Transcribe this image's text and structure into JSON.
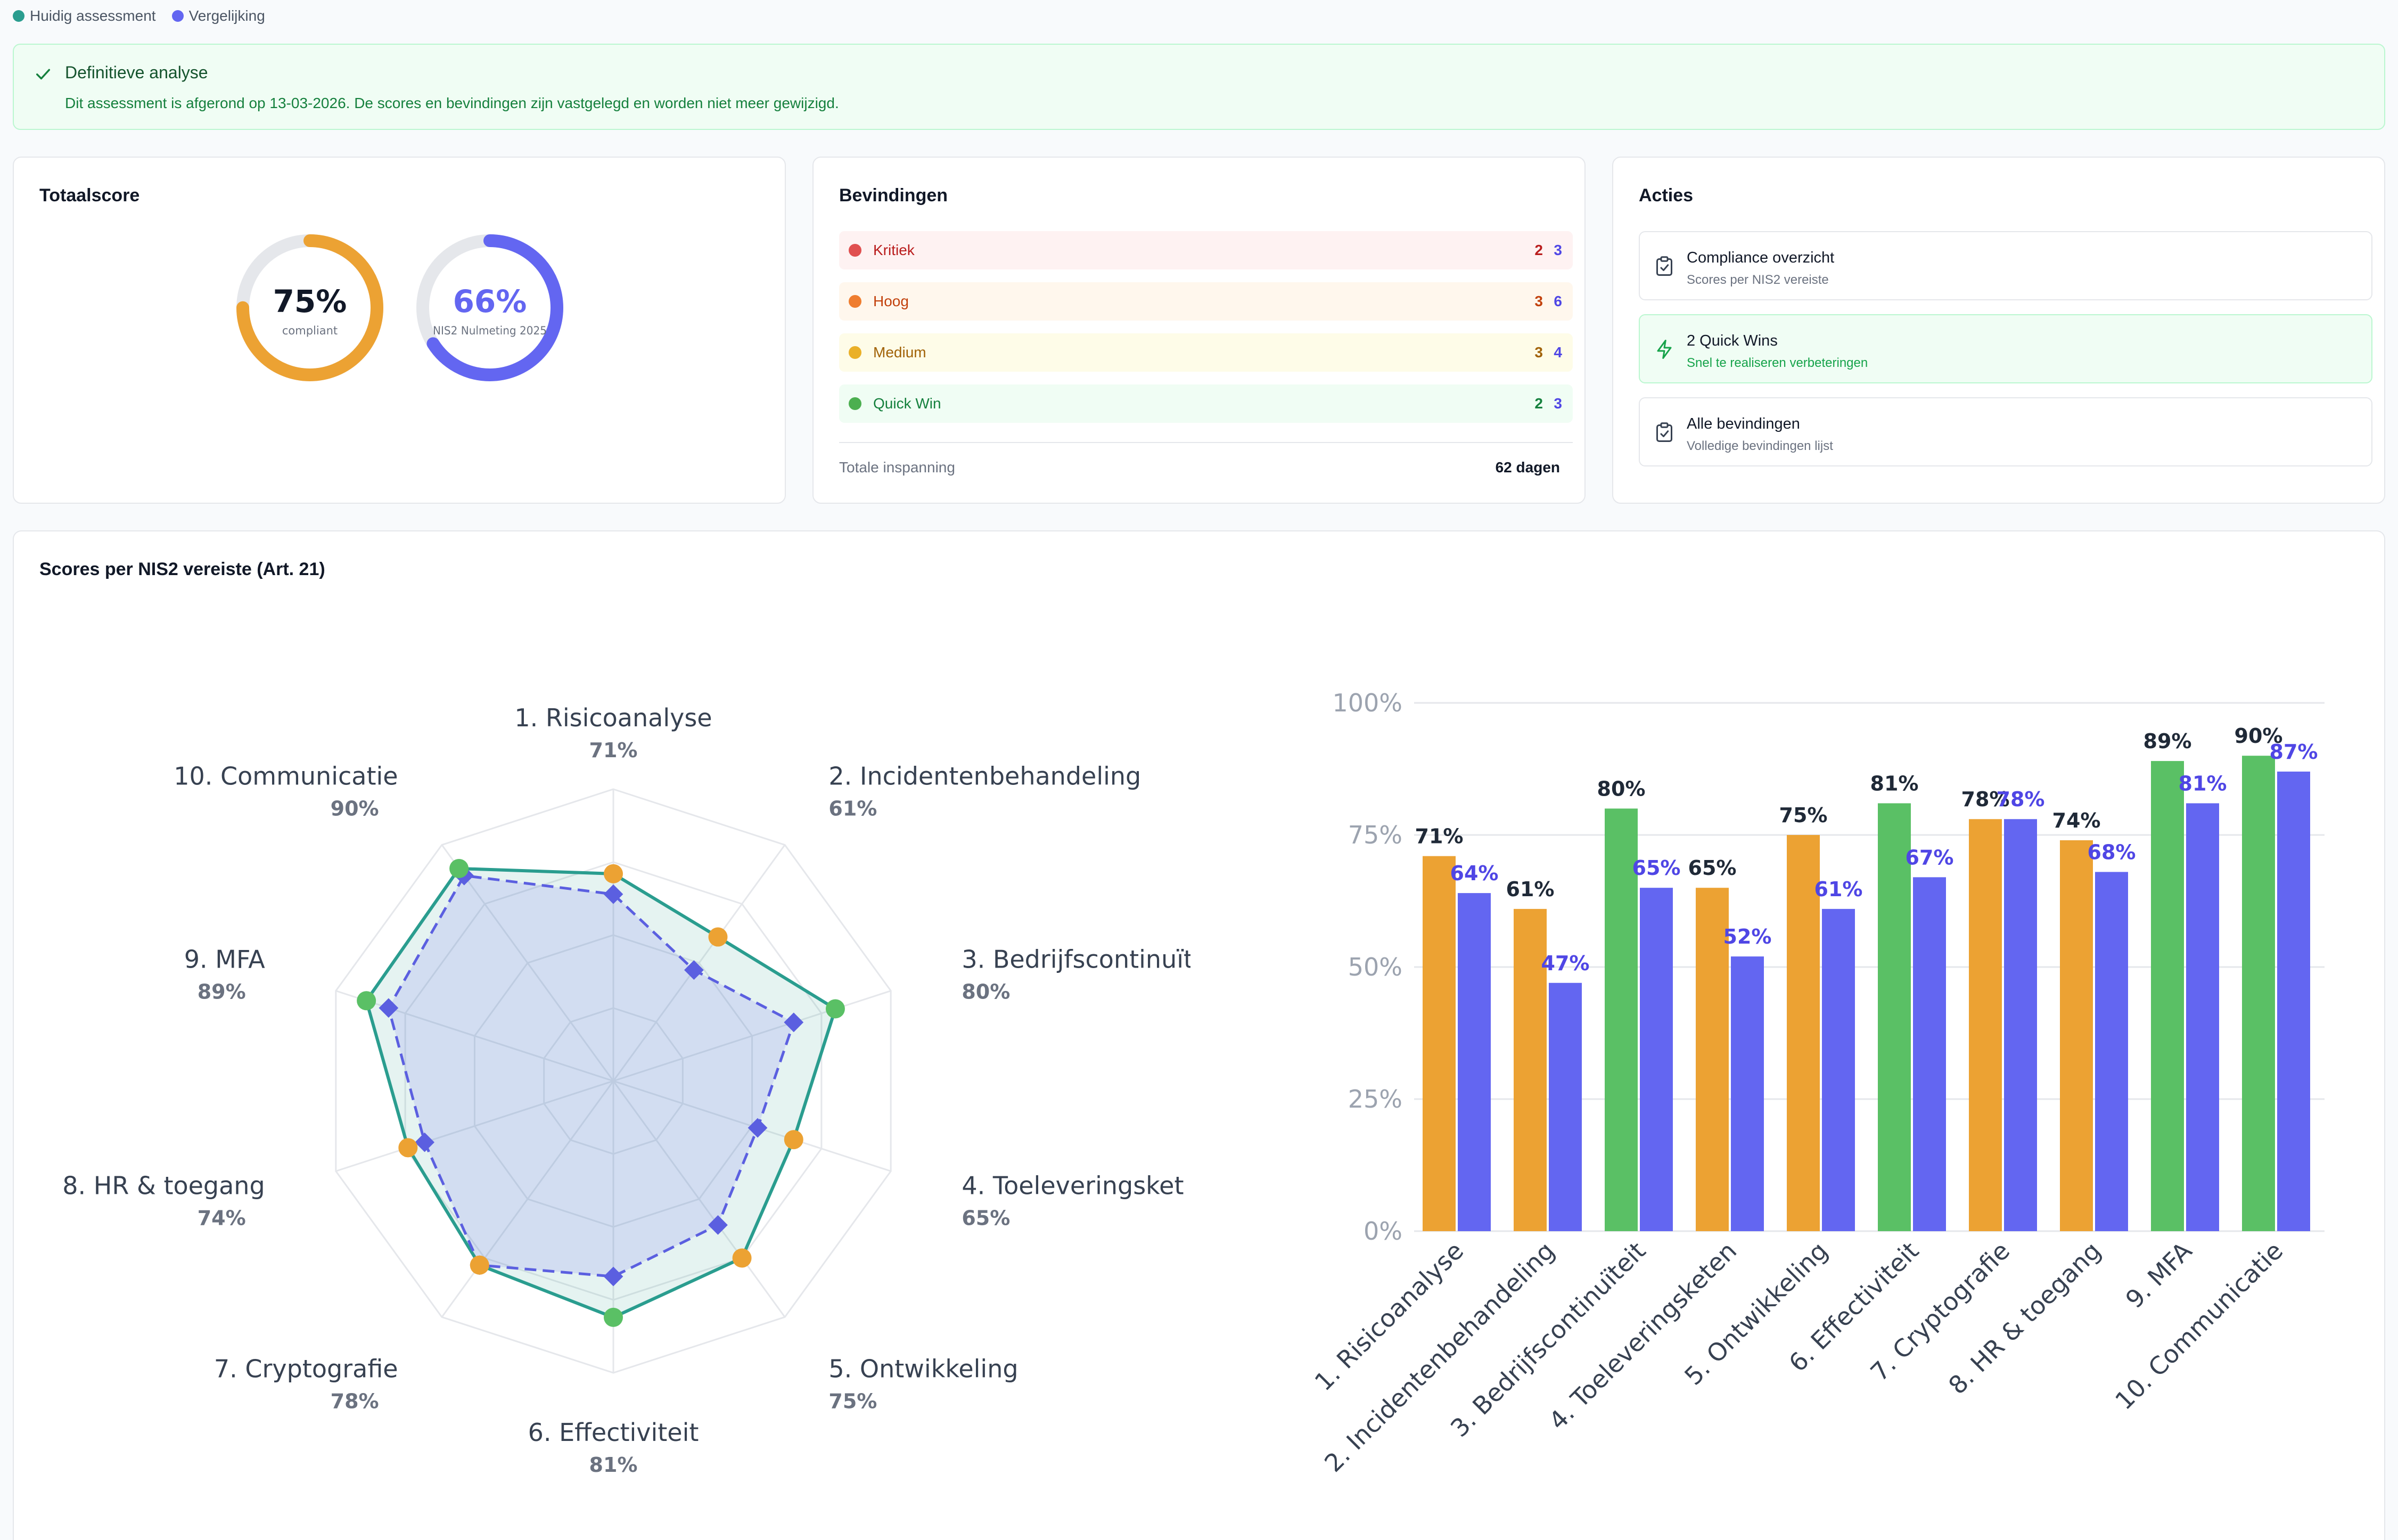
{
  "legend": {
    "current": {
      "label": "Huidig assessment",
      "color": "#2a9d8f"
    },
    "comparison": {
      "label": "Vergelijking",
      "color": "#6366f1"
    }
  },
  "banner": {
    "title": "Definitieve analyse",
    "text": "Dit assessment is afgerond op 13-03-2026. De scores en bevindingen zijn vastgelegd en worden niet meer gewijzigd."
  },
  "total_score": {
    "title": "Totaalscore",
    "current": {
      "value": "75%",
      "label": "compliant",
      "fraction": 0.75,
      "color": "#eca233"
    },
    "comparison": {
      "value": "66%",
      "label": "NIS2 Nulmeting 2025",
      "fraction": 0.66,
      "color": "#6366f1"
    }
  },
  "findings": {
    "title": "Bevindingen",
    "rows": [
      {
        "label": "Kritiek",
        "current": "2",
        "comparison": "3",
        "dot": "#e04f4f",
        "bg": "#fef2f2",
        "text": "#b91c1c"
      },
      {
        "label": "Hoog",
        "current": "3",
        "comparison": "6",
        "dot": "#ef7d2f",
        "bg": "#fff7ed",
        "text": "#c2410c"
      },
      {
        "label": "Medium",
        "current": "3",
        "comparison": "4",
        "dot": "#eab028",
        "bg": "#fefce8",
        "text": "#a16207"
      },
      {
        "label": "Quick Win",
        "current": "2",
        "comparison": "3",
        "dot": "#4caf50",
        "bg": "#f0fdf4",
        "text": "#15803d"
      }
    ],
    "effort_label": "Totale inspanning",
    "effort_value": "62 dagen"
  },
  "actions": {
    "title": "Acties",
    "items": [
      {
        "title": "Compliance overzicht",
        "subtitle": "Scores per NIS2 vereiste",
        "icon": "clipboard-check-icon"
      },
      {
        "title": "2 Quick Wins",
        "subtitle": "Snel te realiseren verbeteringen",
        "icon": "lightning-icon"
      },
      {
        "title": "Alle bevindingen",
        "subtitle": "Volledige bevindingen lijst",
        "icon": "clipboard-check-icon"
      }
    ]
  },
  "scores_section": {
    "title": "Scores per NIS2 vereiste (Art. 21)"
  },
  "chart_data": [
    {
      "type": "radar",
      "categories": [
        "1. Risicoanalyse",
        "2. Incidentenbehandeling",
        "3. Bedrijfscontinuïteit",
        "4. Toeleveringsketen",
        "5. Ontwikkeling",
        "6. Effectiviteit",
        "7. Cryptografie",
        "8. HR & toegang",
        "9. MFA",
        "10. Communicatie"
      ],
      "category_labels_visible": [
        "1. Risicoanalyse",
        "2. Incidentenbehandeling",
        "3. Bedrijfscontinuït",
        "4. Toeleveringsket",
        "5. Ontwikkeling",
        "6. Effectiviteit",
        "7. Cryptografie",
        "8. HR & toegang",
        "9. MFA",
        "10. Communicatie"
      ],
      "series": [
        {
          "name": "Huidig assessment",
          "values": [
            71,
            61,
            80,
            65,
            75,
            81,
            78,
            74,
            89,
            90
          ]
        },
        {
          "name": "Vergelijking",
          "values": [
            64,
            47,
            65,
            52,
            61,
            67,
            78,
            68,
            81,
            87
          ]
        }
      ],
      "value_labels": [
        "71%",
        "61%",
        "80%",
        "65%",
        "75%",
        "81%",
        "78%",
        "74%",
        "89%",
        "90%"
      ],
      "rlim": [
        0,
        100
      ],
      "point_colors": [
        "#eca233",
        "#eca233",
        "#5ac065",
        "#eca233",
        "#eca233",
        "#5ac065",
        "#eca233",
        "#eca233",
        "#5ac065",
        "#5ac065"
      ]
    },
    {
      "type": "bar",
      "categories": [
        "1. Risicoanalyse",
        "2. Incidentenbehandeling",
        "3. Bedrijfscontinuïteit",
        "4. Toeleveringsketen",
        "5. Ontwikkeling",
        "6. Effectiviteit",
        "7. Cryptografie",
        "8. HR & toegang",
        "9. MFA",
        "10. Communicatie"
      ],
      "series": [
        {
          "name": "Huidig assessment",
          "values": [
            71,
            61,
            80,
            65,
            75,
            81,
            78,
            74,
            89,
            90
          ],
          "labels": [
            "71%",
            "61%",
            "80%",
            "65%",
            "75%",
            "81%",
            "78%",
            "74%",
            "89%",
            "90%"
          ]
        },
        {
          "name": "Vergelijking",
          "values": [
            64,
            47,
            65,
            52,
            61,
            67,
            78,
            68,
            81,
            87
          ],
          "labels": [
            "64%",
            "47%",
            "65%",
            "52%",
            "61%",
            "67%",
            "78%",
            "68%",
            "81%",
            "87%"
          ]
        }
      ],
      "bar_colors": [
        "#eca233",
        "#eca233",
        "#5ac065",
        "#eca233",
        "#eca233",
        "#5ac065",
        "#eca233",
        "#eca233",
        "#5ac065",
        "#5ac065"
      ],
      "comparison_color": "#6366f1",
      "ylim": [
        0,
        100
      ],
      "yticks": [
        "0%",
        "25%",
        "50%",
        "75%",
        "100%"
      ]
    }
  ]
}
